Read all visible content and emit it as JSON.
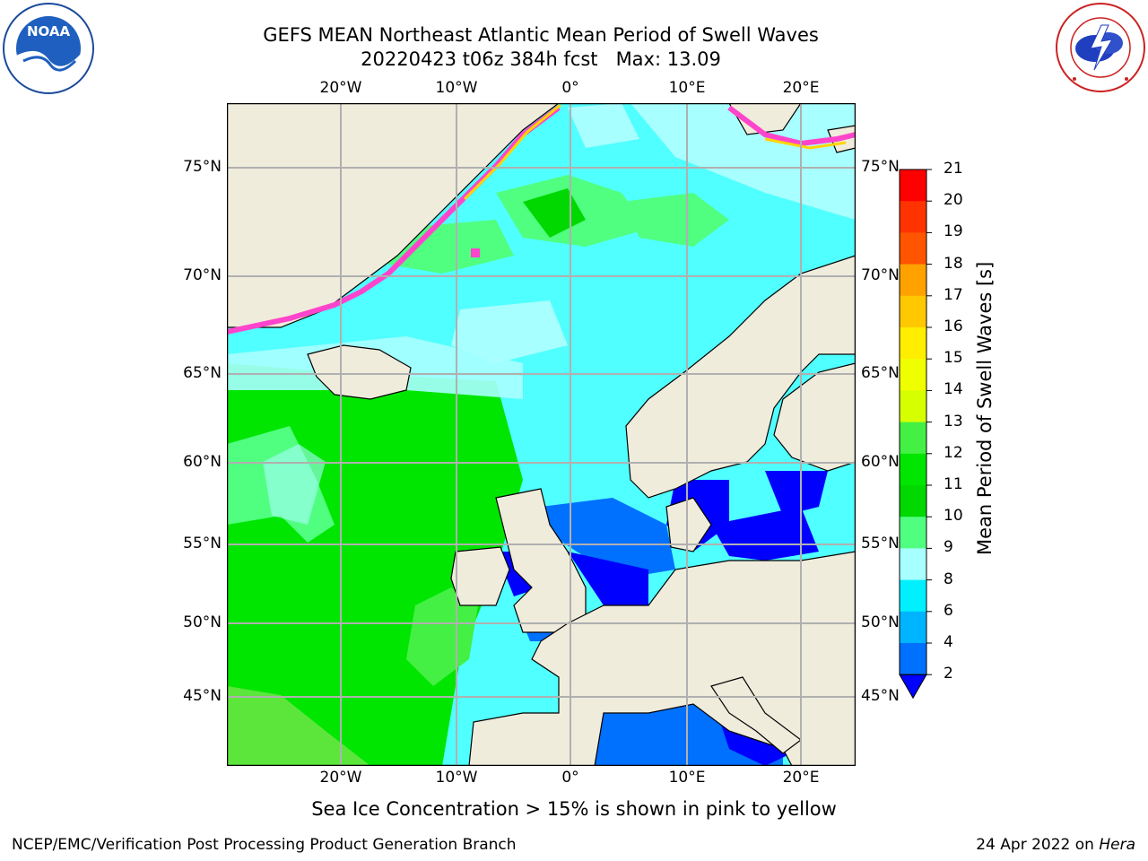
{
  "title": {
    "line1": "GEFS MEAN Northeast Atlantic Mean Period of Swell Waves",
    "line2": "20220423 t06z 384h fcst   Max: 13.09"
  },
  "axes": {
    "lon_labels": [
      "20°W",
      "10°W",
      "0°",
      "10°E",
      "20°E"
    ],
    "lat_labels": [
      "75°N",
      "70°N",
      "65°N",
      "60°N",
      "55°N",
      "50°N",
      "45°N"
    ]
  },
  "colorbar": {
    "title": "Mean Period of Swell Waves [s]",
    "ticks": [
      "21",
      "20",
      "19",
      "18",
      "17",
      "16",
      "15",
      "14",
      "13",
      "12",
      "11",
      "10",
      "9",
      "8",
      "6",
      "4",
      "2"
    ],
    "colors": [
      "#ff0000",
      "#ff3300",
      "#ff5500",
      "#ff7a00",
      "#ffa200",
      "#ffc800",
      "#ffee00",
      "#f0ff00",
      "#d6ff00",
      "#b6ff00",
      "#44f044",
      "#00e600",
      "#00d800",
      "#50ff80",
      "#a8ffff",
      "#50ffff",
      "#00f0ff",
      "#00b4ff",
      "#0070ff",
      "#0000ff"
    ]
  },
  "ice_note": "Sea Ice Concentration > 15% is shown in pink to yellow",
  "footer": {
    "left": "NCEP/EMC/Verification Post Processing Product Generation Branch",
    "right_date": "24 Apr 2022 on ",
    "right_host": "Hera"
  },
  "logos": {
    "noaa": "NOAA",
    "nws": "NATIONAL WEATHER SERVICE"
  }
}
